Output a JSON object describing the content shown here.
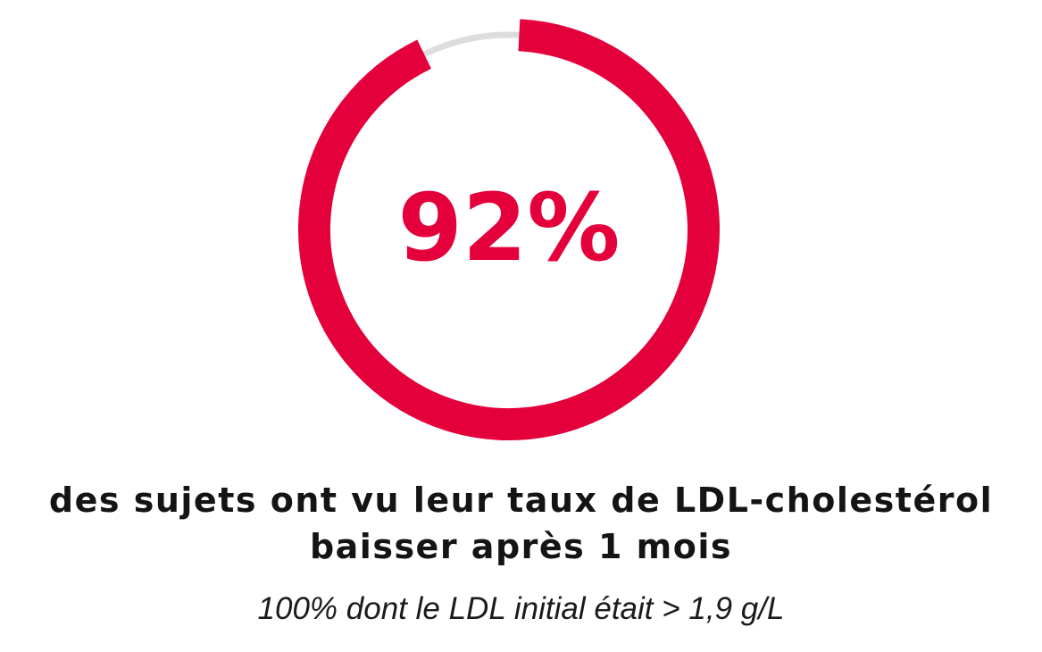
{
  "chart_data": {
    "type": "pie",
    "variant": "donut-progress",
    "value_percent": 92,
    "value_label": "92%",
    "colors": {
      "progress": "#E4003B",
      "track": "#DDDDDD",
      "text": "#E4003B"
    }
  },
  "caption": {
    "line1": "des sujets ont vu leur taux de LDL-cholestérol",
    "line2": "baisser après 1 mois",
    "note": "100% dont le LDL initial était > 1,9 g/L"
  }
}
